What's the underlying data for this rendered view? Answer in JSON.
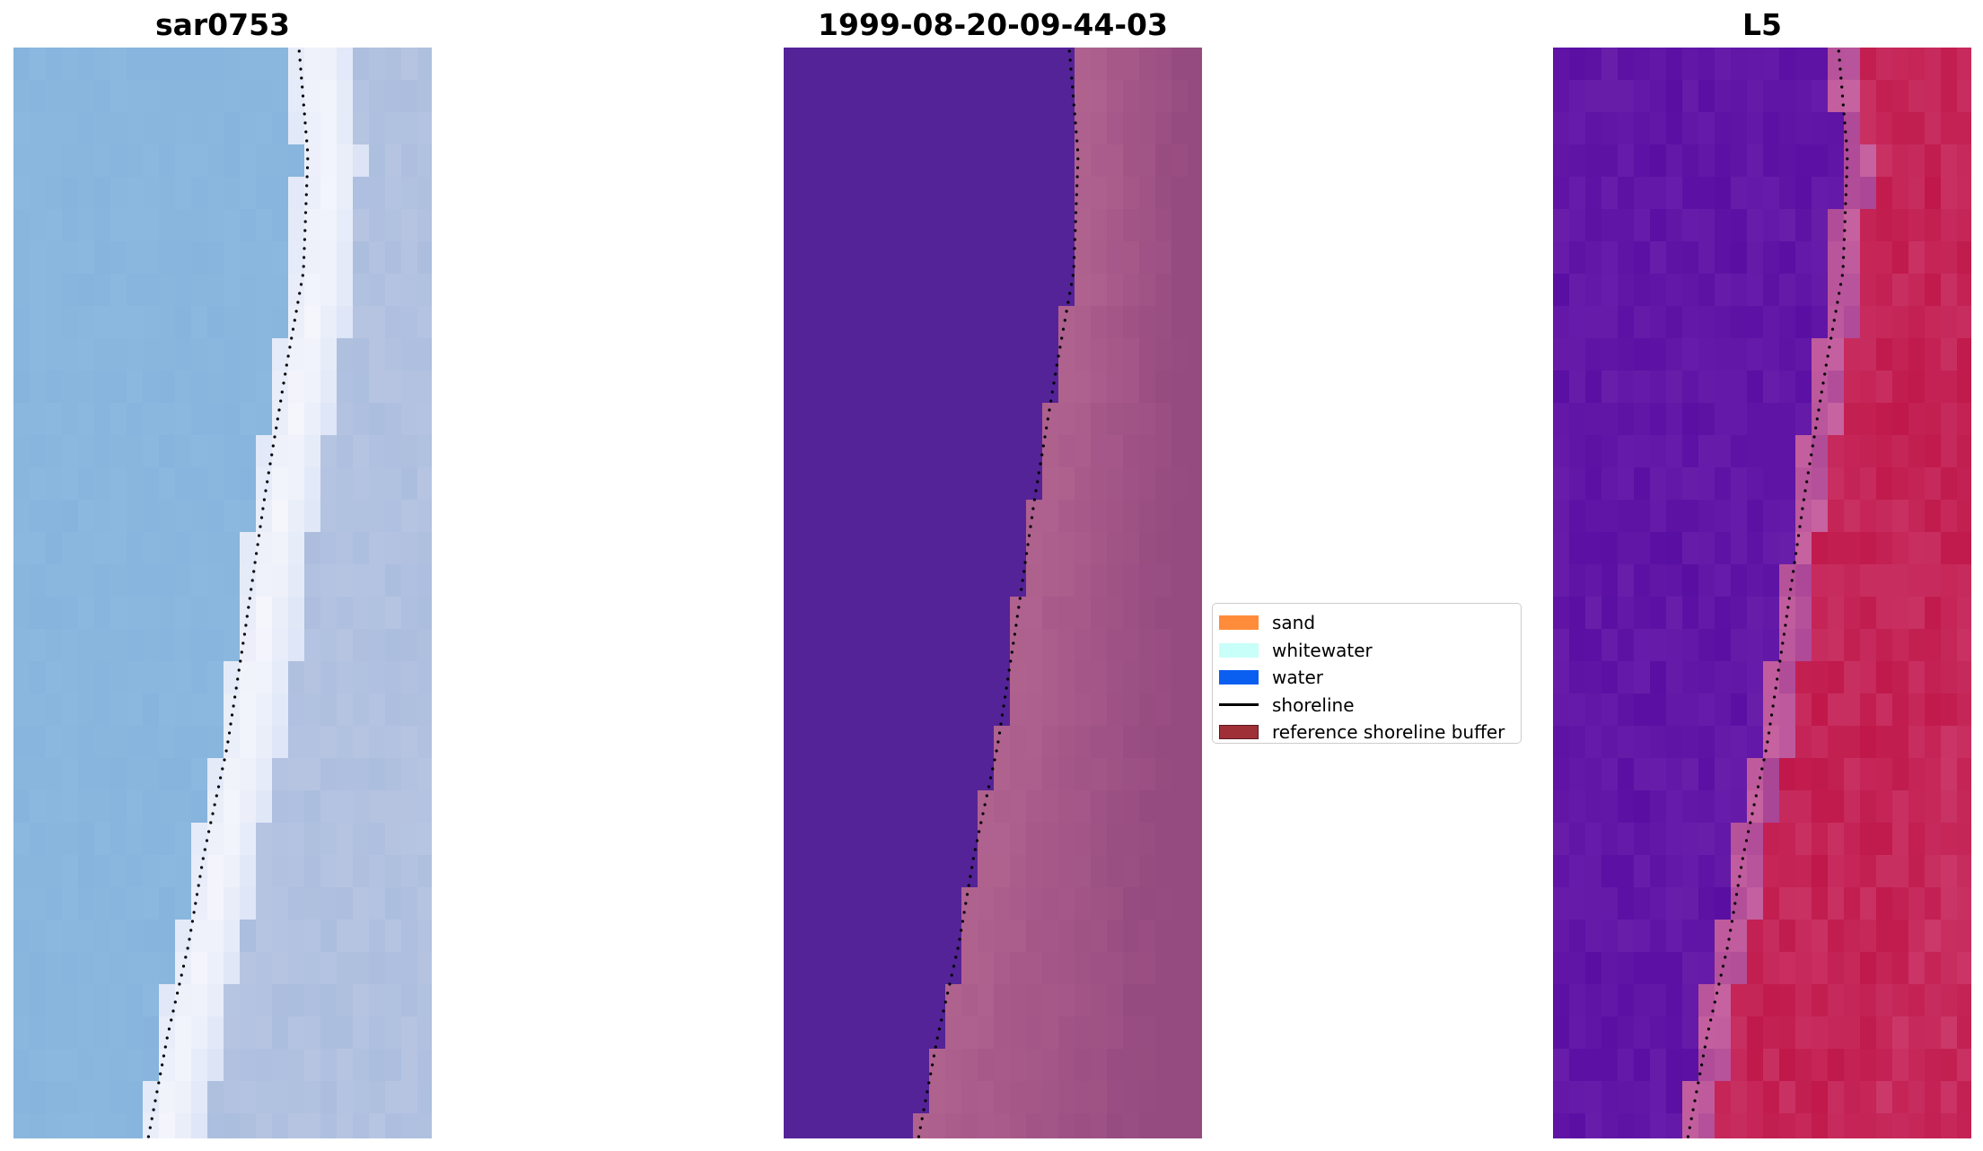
{
  "panels": [
    {
      "title": "sar0753"
    },
    {
      "title": "1999-08-20-09-44-03"
    },
    {
      "title": "L5"
    }
  ],
  "legend": {
    "items": [
      {
        "label": "sand",
        "color": "#ff8c3a"
      },
      {
        "label": "whitewater",
        "color": "#c8fff8"
      },
      {
        "label": "water",
        "color": "#0a5ef0"
      },
      {
        "label": "shoreline",
        "color": "#000000"
      },
      {
        "label": "reference shoreline buffer",
        "color": "#a03038"
      }
    ]
  },
  "colors": {
    "classified_water": "#542397",
    "classified_land": "#b0628f",
    "rgb_water": "#84b2dc",
    "false_color_water": "#5a0fa3",
    "false_color_land": "#c0184a"
  }
}
